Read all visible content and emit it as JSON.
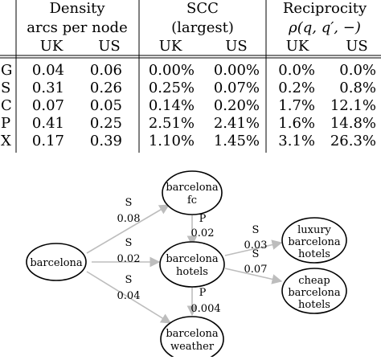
{
  "table": {
    "groups": [
      {
        "line1": "Density",
        "line2": "arcs per node"
      },
      {
        "line1": "SCC",
        "line2": "(largest)"
      },
      {
        "line1": "Reciprocity",
        "line2": "ρ(q, q′, −)"
      }
    ],
    "subheaders": [
      "UK",
      "US",
      "UK",
      "US",
      "UK",
      "US"
    ],
    "rows": [
      {
        "label": "G",
        "values": [
          "0.04",
          "0.06",
          "0.00%",
          "0.00%",
          "0.0%",
          "0.0%"
        ]
      },
      {
        "label": "S",
        "values": [
          "0.31",
          "0.26",
          "0.25%",
          "0.07%",
          "0.2%",
          "0.8%"
        ]
      },
      {
        "label": "C",
        "values": [
          "0.07",
          "0.05",
          "0.14%",
          "0.20%",
          "1.7%",
          "12.1%"
        ]
      },
      {
        "label": "P",
        "values": [
          "0.41",
          "0.25",
          "2.51%",
          "2.41%",
          "1.6%",
          "14.8%"
        ]
      },
      {
        "label": "X",
        "values": [
          "0.17",
          "0.39",
          "1.10%",
          "1.45%",
          "3.1%",
          "26.3%"
        ]
      }
    ]
  },
  "diagram": {
    "nodes": {
      "barcelona": [
        "barcelona"
      ],
      "fc": [
        "barcelona",
        "fc"
      ],
      "hotels": [
        "barcelona",
        "hotels"
      ],
      "weather": [
        "barcelona",
        "weather"
      ],
      "luxury": [
        "luxury",
        "barcelona",
        "hotels"
      ],
      "cheap": [
        "cheap",
        "barcelona",
        "hotels"
      ]
    },
    "edges": [
      {
        "type": "S",
        "weight": "0.08"
      },
      {
        "type": "S",
        "weight": "0.02"
      },
      {
        "type": "S",
        "weight": "0.04"
      },
      {
        "type": "P",
        "weight": "0.02"
      },
      {
        "type": "P",
        "weight": "0.004"
      },
      {
        "type": "S",
        "weight": "0.03"
      },
      {
        "type": "S",
        "weight": "0.07"
      }
    ]
  }
}
